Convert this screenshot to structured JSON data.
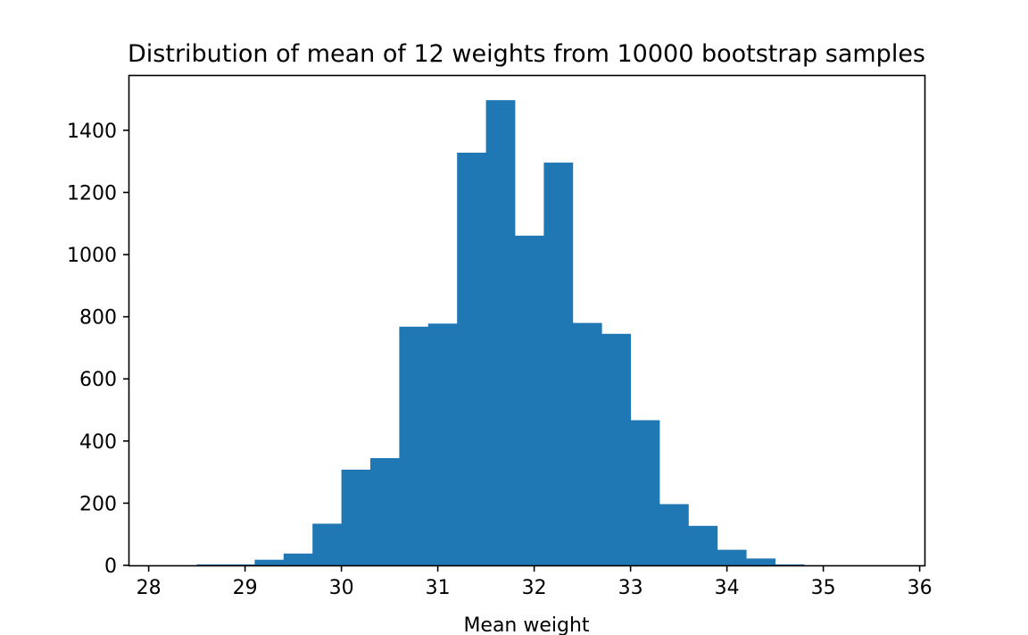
{
  "chart_data": {
    "type": "bar",
    "title": "Distribution of mean of 12 weights from 10000 bootstrap samples",
    "xlabel": "Mean weight",
    "ylabel": "",
    "bar_color": "#1f77b4",
    "xlim": [
      27.8,
      36.05
    ],
    "ylim": [
      0,
      1575
    ],
    "x_ticks": [
      28,
      29,
      30,
      31,
      32,
      33,
      34,
      35,
      36
    ],
    "y_ticks": [
      0,
      200,
      400,
      600,
      800,
      1000,
      1200,
      1400
    ],
    "bin_edges": [
      28.5,
      28.8,
      29.1,
      29.4,
      29.7,
      30.0,
      30.3,
      30.6,
      30.9,
      31.2,
      31.5,
      31.8,
      32.1,
      32.4,
      32.7,
      33.0,
      33.3,
      33.6,
      33.9,
      34.2,
      34.5,
      34.8
    ],
    "values": [
      3,
      3,
      18,
      38,
      134,
      308,
      345,
      768,
      778,
      1328,
      1497,
      1061,
      1296,
      780,
      745,
      467,
      197,
      127,
      50,
      22,
      3
    ],
    "grid": false,
    "legend": "none"
  }
}
